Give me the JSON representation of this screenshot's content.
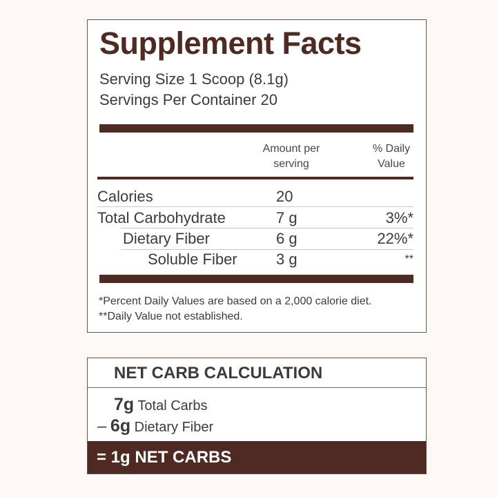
{
  "facts": {
    "title": "Supplement Facts",
    "serving_size": "Serving Size 1 Scoop (8.1g)",
    "servings_per_container": "Servings Per Container 20",
    "header_amount": [
      "Amount per",
      "serving"
    ],
    "header_dv": [
      "% Daily",
      "Value"
    ],
    "rows": [
      {
        "name": "Calories",
        "amount": "20",
        "dv": ""
      },
      {
        "name": "Total Carbohydrate",
        "amount": "7 g",
        "dv": "3%*"
      },
      {
        "name": "Dietary Fiber",
        "amount": "6 g",
        "dv": "22%*"
      },
      {
        "name": "Soluble Fiber",
        "amount": "3 g",
        "dv": "**"
      }
    ],
    "footnotes": [
      "*Percent Daily Values are based on a 2,000 calorie diet.",
      "**Daily Value not established."
    ]
  },
  "net_carb": {
    "title": "NET CARB CALCULATION",
    "line1": {
      "prefix": "",
      "value": "7g",
      "label": "Total Carbs"
    },
    "line2": {
      "prefix": "–",
      "value": "6g",
      "label": "Dietary Fiber"
    },
    "result": "= 1g NET CARBS"
  },
  "colors": {
    "brand_brown": "#4f2a22",
    "background": "#fcf9f4"
  }
}
